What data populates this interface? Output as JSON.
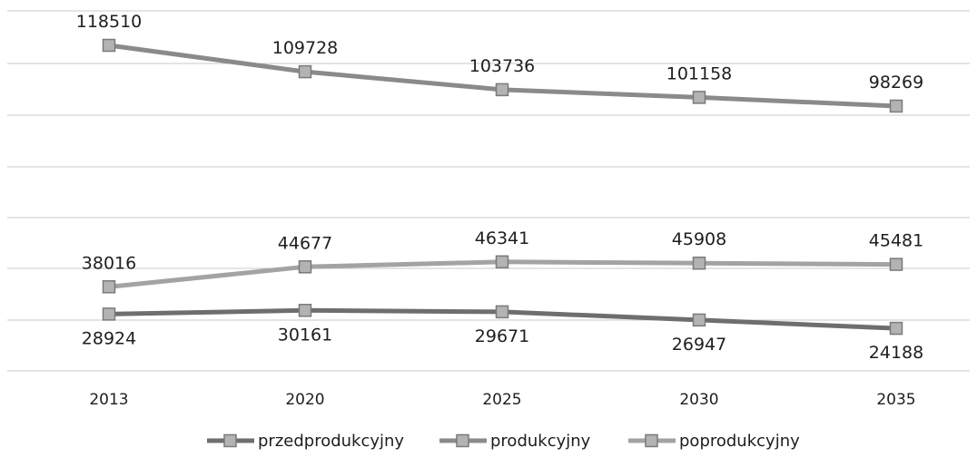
{
  "chart_data": {
    "type": "line",
    "categories": [
      "2013",
      "2020",
      "2025",
      "2030",
      "2035"
    ],
    "series": [
      {
        "name": "przedprodukcyjny",
        "values": [
          28924,
          30161,
          29671,
          26947,
          24188
        ],
        "color": "#6e6e6e",
        "label_position": "below"
      },
      {
        "name": "produkcyjny",
        "values": [
          118510,
          109728,
          103736,
          101158,
          98269
        ],
        "color": "#8a8a8a",
        "label_position": "above"
      },
      {
        "name": "poprodukcyjny",
        "values": [
          38016,
          44677,
          46341,
          45908,
          45481
        ],
        "color": "#a3a3a3",
        "label_position": "above"
      }
    ],
    "grid": true,
    "legend": "bottom",
    "title": "",
    "xlabel": "",
    "ylabel": ""
  }
}
